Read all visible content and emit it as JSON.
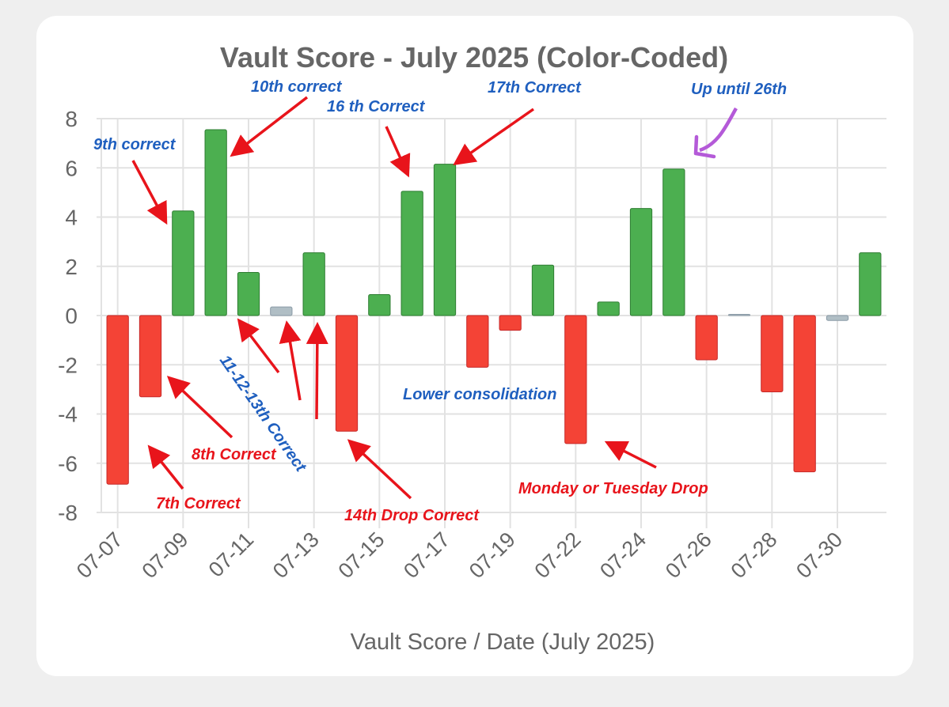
{
  "chart_data": {
    "type": "bar",
    "title": "Vault Score - July 2025 (Color-Coded)",
    "xlabel": "Vault Score / Date (July 2025)",
    "ylabel": "",
    "ylim": [
      -8,
      8
    ],
    "yticks": [
      8,
      6,
      4,
      2,
      0,
      -2,
      -4,
      -6,
      -8
    ],
    "grid": true,
    "categories": [
      "07-07",
      "07-08",
      "07-09",
      "07-10",
      "07-11",
      "07-12",
      "07-13",
      "07-14",
      "07-15",
      "07-16",
      "07-17",
      "07-18",
      "07-19",
      "07-21",
      "07-22",
      "07-23",
      "07-24",
      "07-25",
      "07-26",
      "07-27",
      "07-28",
      "07-29",
      "07-30",
      "07-31"
    ],
    "xtick_labels": [
      "07-07",
      "07-09",
      "07-11",
      "07-13",
      "07-15",
      "07-17",
      "07-19",
      "07-22",
      "07-24",
      "07-26",
      "07-28",
      "07-30"
    ],
    "values": [
      -6.85,
      -3.3,
      4.25,
      7.55,
      1.75,
      0.35,
      2.55,
      -4.7,
      0.85,
      5.05,
      6.15,
      -2.1,
      -0.6,
      2.05,
      -5.2,
      0.55,
      4.35,
      5.95,
      -1.8,
      0.05,
      -3.1,
      -6.35,
      -0.2,
      2.55
    ],
    "colors": {
      "positive": "#4caf50",
      "negative": "#f44336",
      "neutral": "#b0bec5"
    },
    "annotations": [
      {
        "text": "9th correct",
        "color": "#1f5fbf"
      },
      {
        "text": "10th correct",
        "color": "#1f5fbf"
      },
      {
        "text": "16 th Correct",
        "color": "#1f5fbf"
      },
      {
        "text": "17th Correct",
        "color": "#1f5fbf"
      },
      {
        "text": "Up until 26th",
        "color": "#1f5fbf"
      },
      {
        "text": "11-12-13th Correct",
        "color": "#1f5fbf"
      },
      {
        "text": "Lower consolidation",
        "color": "#1f5fbf"
      },
      {
        "text": "8th Correct",
        "color": "#e8141b"
      },
      {
        "text": "7th Correct",
        "color": "#e8141b"
      },
      {
        "text": "14th Drop Correct",
        "color": "#e8141b"
      },
      {
        "text": "Monday or Tuesday Drop",
        "color": "#e8141b"
      }
    ]
  }
}
